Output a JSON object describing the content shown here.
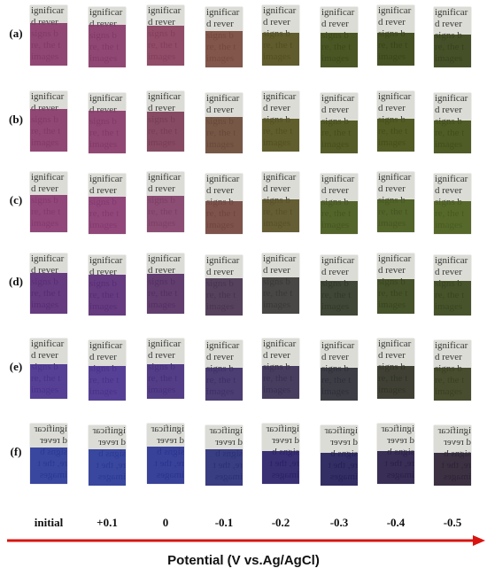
{
  "rows": [
    {
      "label": "(a)",
      "colors": [
        "#8a3a6a",
        "#8a3a6a",
        "#8a3f5e",
        "#7a4a3e",
        "#55501e",
        "#3e4a16",
        "#394515",
        "#37431a"
      ],
      "fills": [
        0.7,
        0.7,
        0.66,
        0.6,
        0.55,
        0.58,
        0.55,
        0.55
      ]
    },
    {
      "label": "(b)",
      "colors": [
        "#8a3a6a",
        "#8a3a6a",
        "#7e3e58",
        "#6d4b3a",
        "#56521e",
        "#4a5018",
        "#465016",
        "#425017"
      ],
      "fills": [
        0.7,
        0.7,
        0.66,
        0.6,
        0.55,
        0.55,
        0.55,
        0.55
      ]
    },
    {
      "label": "(c)",
      "colors": [
        "#8a3a72",
        "#8a3a72",
        "#83406a",
        "#74463f",
        "#5a5226",
        "#465a1c",
        "#465a1c",
        "#4a5e1c"
      ],
      "fills": [
        0.62,
        0.62,
        0.6,
        0.55,
        0.55,
        0.55,
        0.55,
        0.55
      ]
    },
    {
      "label": "(d)",
      "colors": [
        "#5b2d78",
        "#5b2d78",
        "#573066",
        "#4a3452",
        "#3b3a38",
        "#333a28",
        "#39461c",
        "#39461c"
      ],
      "fills": [
        0.68,
        0.68,
        0.66,
        0.62,
        0.6,
        0.58,
        0.58,
        0.58
      ]
    },
    {
      "label": "(e)",
      "colors": [
        "#4a3290",
        "#4a3290",
        "#462f80",
        "#3f2f6a",
        "#3a2f55",
        "#2f2f3a",
        "#323326",
        "#3a4020"
      ],
      "fills": [
        0.58,
        0.58,
        0.58,
        0.55,
        0.55,
        0.55,
        0.55,
        0.55
      ]
    },
    {
      "label": "(f)",
      "colors": [
        "#2a3a9a",
        "#2a3a9a",
        "#2a3494",
        "#2a2f7a",
        "#2a1f6a",
        "#24205a",
        "#2a1e4a",
        "#2e2236"
      ],
      "fills": [
        0.6,
        0.6,
        0.62,
        0.6,
        0.55,
        0.55,
        0.55,
        0.55
      ]
    }
  ],
  "potentials": [
    "initial",
    "+0.1",
    "0",
    "-0.1",
    "-0.2",
    "-0.3",
    "-0.4",
    "-0.5"
  ],
  "axis_title": "Potential (V vs.Ag/AgCl)",
  "background_text": [
    "ignificar",
    "d rever",
    "signs  b",
    "re, the t",
    "images"
  ],
  "mirrored_rows": [
    "(f)"
  ],
  "arrow_color": "#d9130f"
}
